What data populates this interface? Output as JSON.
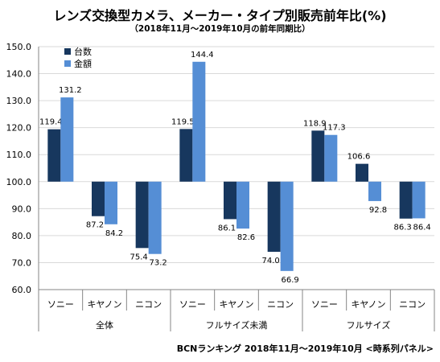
{
  "chart_data": {
    "type": "bar",
    "title": "レンズ交換型カメラ、メーカー・タイプ別販売前年比(%)",
    "subtitle": "（2018年11月～2019年10月の前年同期比）",
    "groups": [
      {
        "label": "全体",
        "categories": [
          "ソニー",
          "キヤノン",
          "ニコン"
        ]
      },
      {
        "label": "フルサイズ未満",
        "categories": [
          "ソニー",
          "キヤノン",
          "ニコン"
        ]
      },
      {
        "label": "フルサイズ",
        "categories": [
          "ソニー",
          "キヤノン",
          "ニコン"
        ]
      }
    ],
    "series": [
      {
        "name": "台数",
        "color": "#17375e",
        "values": [
          119.4,
          87.2,
          75.4,
          119.5,
          86.1,
          74.0,
          118.9,
          106.6,
          86.3
        ],
        "labels": [
          "119.4",
          "87.2",
          "75.4",
          "119.5",
          "86.1",
          "74.0",
          "118.9",
          "106.6",
          "86.3"
        ]
      },
      {
        "name": "金額",
        "color": "#558ed5",
        "values": [
          131.2,
          84.2,
          73.2,
          144.4,
          82.6,
          66.9,
          117.3,
          92.8,
          86.4
        ],
        "labels": [
          "131.2",
          "84.2",
          "73.2",
          "144.4",
          "82.6",
          "66.9",
          "117.3",
          "92.8",
          "86.4"
        ]
      }
    ],
    "ylim": [
      60,
      150
    ],
    "yticks": [
      "60.0",
      "70.0",
      "80.0",
      "90.0",
      "100.0",
      "110.0",
      "120.0",
      "130.0",
      "140.0",
      "150.0"
    ],
    "baseline": 100,
    "grid": true,
    "legend": "top-left"
  },
  "source": "BCNランキング 2018年11月～2019年10月 <時系列パネル>"
}
